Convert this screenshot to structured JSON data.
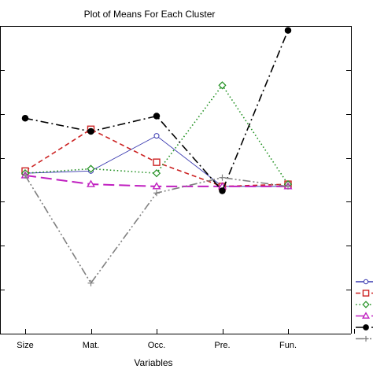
{
  "chart_data": {
    "type": "line",
    "title": "Plot of Means For Each Cluster",
    "xlabel": "Variables",
    "ylabel": "",
    "categories": [
      "Size",
      "Mat.",
      "Occ.",
      "Pre.",
      "Fun."
    ],
    "ylim": [
      0,
      7
    ],
    "grid": false,
    "legend": "right (markers only, cropped)",
    "series": [
      {
        "values": [
          3.65,
          3.7,
          4.5,
          3.35,
          3.35
        ],
        "color": "#3a3ab0",
        "marker": "circle-open",
        "dash": "solid"
      },
      {
        "values": [
          3.7,
          4.65,
          3.9,
          3.35,
          3.4
        ],
        "color": "#cc2222",
        "marker": "square-open",
        "dash": "short-dash"
      },
      {
        "values": [
          3.65,
          3.75,
          3.65,
          5.65,
          3.4
        ],
        "color": "#1f8f1f",
        "marker": "diamond-open",
        "dash": "dotted"
      },
      {
        "values": [
          3.6,
          3.4,
          3.35,
          3.35,
          3.35
        ],
        "color": "#c020c0",
        "marker": "triangle-open",
        "dash": "long-dash"
      },
      {
        "values": [
          4.9,
          4.6,
          4.95,
          3.25,
          6.9
        ],
        "color": "#000000",
        "marker": "circle-filled",
        "dash": "dash-dot"
      },
      {
        "values": [
          3.6,
          1.15,
          3.2,
          3.55,
          3.35
        ],
        "color": "#808080",
        "marker": "plus",
        "dash": "dash-dot-dot"
      }
    ]
  }
}
